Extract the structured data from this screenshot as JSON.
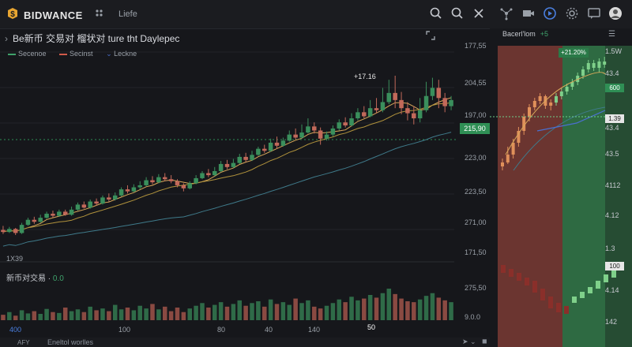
{
  "app": {
    "brand": "BIDWANCE",
    "nav_link": "Liefe"
  },
  "chart": {
    "title": "Be新币 交易对 榴状对 ture tht Daylepec",
    "legend": [
      {
        "label": "Secenoe",
        "color": "#3fa26b"
      },
      {
        "label": "Secinst",
        "color": "#d05a4a"
      },
      {
        "label": "Leckne",
        "color": "#4a6fd0"
      }
    ],
    "price_axis": [
      "177,55",
      "204,55",
      "197,00",
      "223,00",
      "223,50",
      "271,00",
      "171,50",
      "275,50",
      "9.0.0"
    ],
    "current_price": "215,90",
    "peak_label": "+17.16",
    "interval": "1X39",
    "volume_label": "新币对交易",
    "volume_value": "0.0",
    "time_axis": [
      "400",
      "100",
      "80",
      "40",
      "140",
      "50"
    ],
    "bottom_text": "Eneltol worlles",
    "bottom_label": "AFY"
  },
  "right_panel": {
    "header": "Bacerl'lom",
    "header_value": "+5",
    "price_tag": "+21.20%",
    "axis": [
      "1.5W",
      "43.4",
      "600",
      "1.39",
      "43.4",
      "43.5",
      "4112",
      "4.12",
      "4.12",
      "1.3",
      "1.00",
      "4.14",
      "142"
    ],
    "current_price_green": "600",
    "current_price_white": "1.39",
    "bottom_tag": "100"
  },
  "chart_data": {
    "type": "candlestick",
    "candles": [
      [
        30,
        28,
        34,
        26
      ],
      [
        28,
        31,
        33,
        27
      ],
      [
        31,
        27,
        32,
        25
      ],
      [
        27,
        35,
        37,
        26
      ],
      [
        35,
        40,
        42,
        34
      ],
      [
        40,
        38,
        43,
        36
      ],
      [
        38,
        42,
        45,
        37
      ],
      [
        42,
        46,
        48,
        41
      ],
      [
        46,
        44,
        49,
        42
      ],
      [
        44,
        48,
        50,
        43
      ],
      [
        48,
        45,
        50,
        44
      ],
      [
        45,
        50,
        53,
        44
      ],
      [
        50,
        55,
        57,
        49
      ],
      [
        55,
        52,
        58,
        51
      ],
      [
        52,
        58,
        60,
        51
      ],
      [
        58,
        56,
        61,
        54
      ],
      [
        56,
        62,
        64,
        55
      ],
      [
        62,
        60,
        66,
        58
      ],
      [
        60,
        64,
        67,
        59
      ],
      [
        64,
        70,
        72,
        63
      ],
      [
        70,
        68,
        74,
        66
      ],
      [
        68,
        72,
        75,
        67
      ],
      [
        72,
        74,
        78,
        70
      ],
      [
        74,
        79,
        82,
        73
      ],
      [
        79,
        77,
        83,
        75
      ],
      [
        77,
        82,
        85,
        76
      ],
      [
        82,
        80,
        86,
        78
      ],
      [
        80,
        78,
        84,
        76
      ],
      [
        78,
        74,
        80,
        72
      ],
      [
        74,
        71,
        76,
        68
      ],
      [
        71,
        76,
        78,
        70
      ],
      [
        76,
        81,
        84,
        75
      ],
      [
        81,
        86,
        88,
        80
      ],
      [
        86,
        84,
        90,
        82
      ],
      [
        84,
        88,
        92,
        83
      ],
      [
        88,
        95,
        98,
        87
      ],
      [
        95,
        92,
        99,
        90
      ],
      [
        92,
        96,
        100,
        91
      ],
      [
        96,
        102,
        105,
        95
      ],
      [
        102,
        99,
        106,
        97
      ],
      [
        99,
        104,
        108,
        98
      ],
      [
        104,
        110,
        112,
        103
      ],
      [
        110,
        108,
        114,
        106
      ],
      [
        108,
        116,
        120,
        107
      ],
      [
        116,
        113,
        122,
        110
      ],
      [
        113,
        118,
        121,
        112
      ],
      [
        118,
        124,
        128,
        117
      ],
      [
        124,
        121,
        130,
        119
      ],
      [
        121,
        126,
        134,
        120
      ],
      [
        126,
        132,
        140,
        125
      ],
      [
        132,
        128,
        136,
        125
      ],
      [
        128,
        120,
        131,
        114
      ],
      [
        120,
        124,
        127,
        118
      ],
      [
        124,
        130,
        133,
        122
      ],
      [
        130,
        136,
        139,
        128
      ],
      [
        136,
        133,
        141,
        131
      ],
      [
        133,
        140,
        145,
        132
      ],
      [
        140,
        146,
        150,
        138
      ],
      [
        146,
        142,
        152,
        140
      ],
      [
        142,
        150,
        158,
        141
      ],
      [
        150,
        148,
        160,
        145
      ],
      [
        148,
        156,
        170,
        146
      ],
      [
        156,
        165,
        178,
        154
      ],
      [
        165,
        158,
        182,
        150
      ],
      [
        158,
        150,
        166,
        144
      ],
      [
        150,
        145,
        156,
        138
      ],
      [
        145,
        140,
        152,
        134
      ],
      [
        140,
        148,
        160,
        136
      ],
      [
        148,
        162,
        176,
        146
      ],
      [
        162,
        170,
        180,
        158
      ],
      [
        170,
        160,
        178,
        150
      ],
      [
        160,
        152,
        165,
        146
      ],
      [
        152,
        158,
        162,
        148
      ]
    ],
    "volume": [
      12,
      18,
      10,
      22,
      15,
      20,
      14,
      25,
      18,
      16,
      28,
      20,
      24,
      18,
      30,
      22,
      26,
      20,
      34,
      24,
      28,
      22,
      32,
      26,
      36,
      24,
      30,
      20,
      28,
      18,
      26,
      32,
      38,
      28,
      34,
      40,
      30,
      36,
      44,
      32,
      38,
      42,
      30,
      46,
      36,
      40,
      34,
      48,
      38,
      44,
      30,
      26,
      32,
      38,
      46,
      40,
      52,
      44,
      48,
      56,
      50,
      60,
      70,
      58,
      48,
      42,
      40,
      46,
      54,
      60,
      50,
      44,
      40
    ]
  }
}
